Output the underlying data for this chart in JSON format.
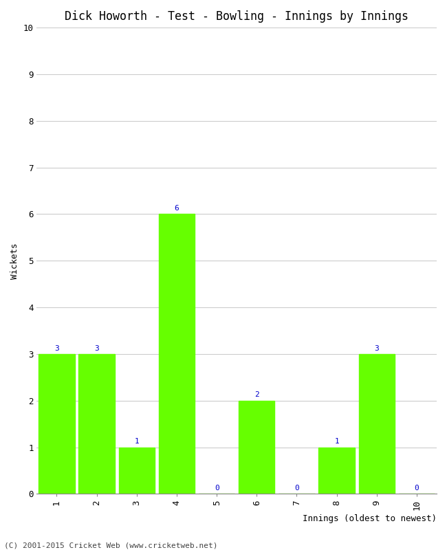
{
  "title": "Dick Howorth - Test - Bowling - Innings by Innings",
  "xlabel": "Innings (oldest to newest)",
  "ylabel": "Wickets",
  "categories": [
    1,
    2,
    3,
    4,
    5,
    6,
    7,
    8,
    9,
    10
  ],
  "values": [
    3,
    3,
    1,
    6,
    0,
    2,
    0,
    1,
    3,
    0
  ],
  "bar_color": "#66ff00",
  "bar_edge_color": "#66ff00",
  "label_color": "#0000cc",
  "ylim": [
    0,
    10
  ],
  "yticks": [
    0,
    1,
    2,
    3,
    4,
    5,
    6,
    7,
    8,
    9,
    10
  ],
  "background_color": "#ffffff",
  "grid_color": "#cccccc",
  "title_fontsize": 12,
  "axis_label_fontsize": 9,
  "tick_fontsize": 9,
  "bar_label_fontsize": 8,
  "footer": "(C) 2001-2015 Cricket Web (www.cricketweb.net)",
  "footer_fontsize": 8
}
